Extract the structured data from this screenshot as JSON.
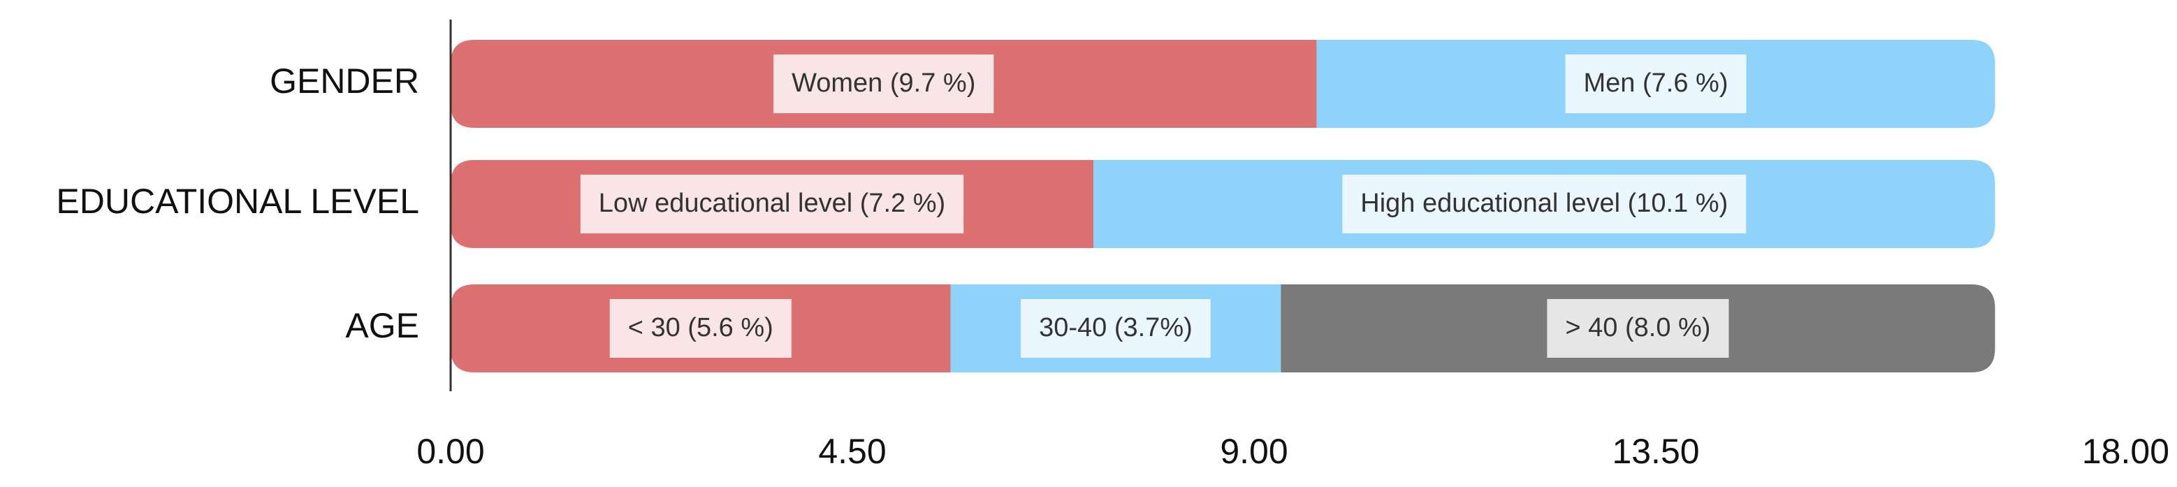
{
  "chart_data": {
    "type": "bar",
    "orientation": "horizontal",
    "stacked": true,
    "title": "",
    "xlabel": "",
    "ylabel": "",
    "xlim": [
      0,
      18
    ],
    "x_ticks": [
      "0.00",
      "4.50",
      "9.00",
      "13.50",
      "18.00"
    ],
    "x_tick_values": [
      0,
      4.5,
      9,
      13.5,
      18
    ],
    "grid": false,
    "legend": "none",
    "colors": {
      "red": "#dd7070",
      "blue": "#8fd3fa",
      "gray": "#7a7a7a",
      "axis": "#333333"
    },
    "categories": [
      "GENDER",
      "EDUCATIONAL LEVEL",
      "AGE"
    ],
    "rows": [
      {
        "category": "GENDER",
        "segments": [
          {
            "value": 9.7,
            "label": "Women (9.7 %)",
            "color": "#dd7070"
          },
          {
            "value": 7.6,
            "label": "Men (7.6 %)",
            "color": "#8fd3fa"
          }
        ]
      },
      {
        "category": "EDUCATIONAL LEVEL",
        "segments": [
          {
            "value": 7.2,
            "label": "Low educational level (7.2 %)",
            "color": "#dd7070"
          },
          {
            "value": 10.1,
            "label": "High educational level (10.1 %)",
            "color": "#8fd3fa"
          }
        ]
      },
      {
        "category": "AGE",
        "segments": [
          {
            "value": 5.6,
            "label": "< 30  (5.6 %)",
            "color": "#dd7070"
          },
          {
            "value": 3.7,
            "label": "30-40 (3.7%)",
            "color": "#8fd3fa"
          },
          {
            "value": 8.0,
            "label": "> 40  (8.0 %)",
            "color": "#7a7a7a"
          }
        ]
      }
    ]
  }
}
